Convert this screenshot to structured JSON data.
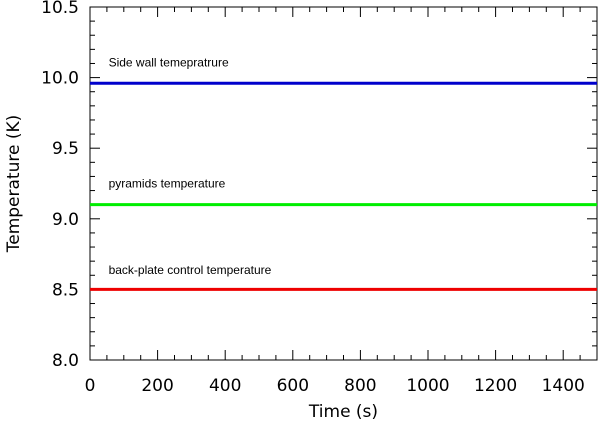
{
  "chart_data": {
    "type": "line",
    "xlabel": "Time (s)",
    "ylabel": "Temperature (K)",
    "xlim": [
      0,
      1500
    ],
    "ylim": [
      8.0,
      10.5
    ],
    "x_ticks": [
      0,
      200,
      400,
      600,
      800,
      1000,
      1200,
      1400
    ],
    "y_ticks": [
      8.0,
      8.5,
      9.0,
      9.5,
      10.0,
      10.5
    ],
    "x_tick_labels": [
      "0",
      "200",
      "400",
      "600",
      "800",
      "1000",
      "1200",
      "1400"
    ],
    "y_tick_labels": [
      "8.0",
      "8.5",
      "9.0",
      "9.5",
      "10.0",
      "10.5"
    ],
    "grid": false,
    "legend": "none",
    "series": [
      {
        "name": "Side wall temepratrure",
        "color": "#0000cc",
        "x": [
          0,
          250,
          500,
          750,
          1000,
          1250,
          1500
        ],
        "y": [
          9.96,
          9.96,
          9.96,
          9.96,
          9.96,
          9.96,
          9.96
        ]
      },
      {
        "name": "pyramids temperature",
        "color": "#00ee00",
        "x": [
          0,
          250,
          500,
          750,
          1000,
          1250,
          1500
        ],
        "y": [
          9.1,
          9.1,
          9.1,
          9.1,
          9.1,
          9.1,
          9.1
        ]
      },
      {
        "name": "back-plate control temperature",
        "color": "#ee0000",
        "x": [
          0,
          250,
          500,
          750,
          1000,
          1250,
          1500
        ],
        "y": [
          8.5,
          8.5,
          8.5,
          8.5,
          8.5,
          8.5,
          8.5
        ]
      }
    ],
    "annotations": [
      {
        "text": "Side wall temepratrure",
        "x": 55,
        "y": 10.08
      },
      {
        "text": "pyramids temperature",
        "x": 55,
        "y": 9.22
      },
      {
        "text": "back-plate control temperature",
        "x": 55,
        "y": 8.61
      }
    ]
  }
}
